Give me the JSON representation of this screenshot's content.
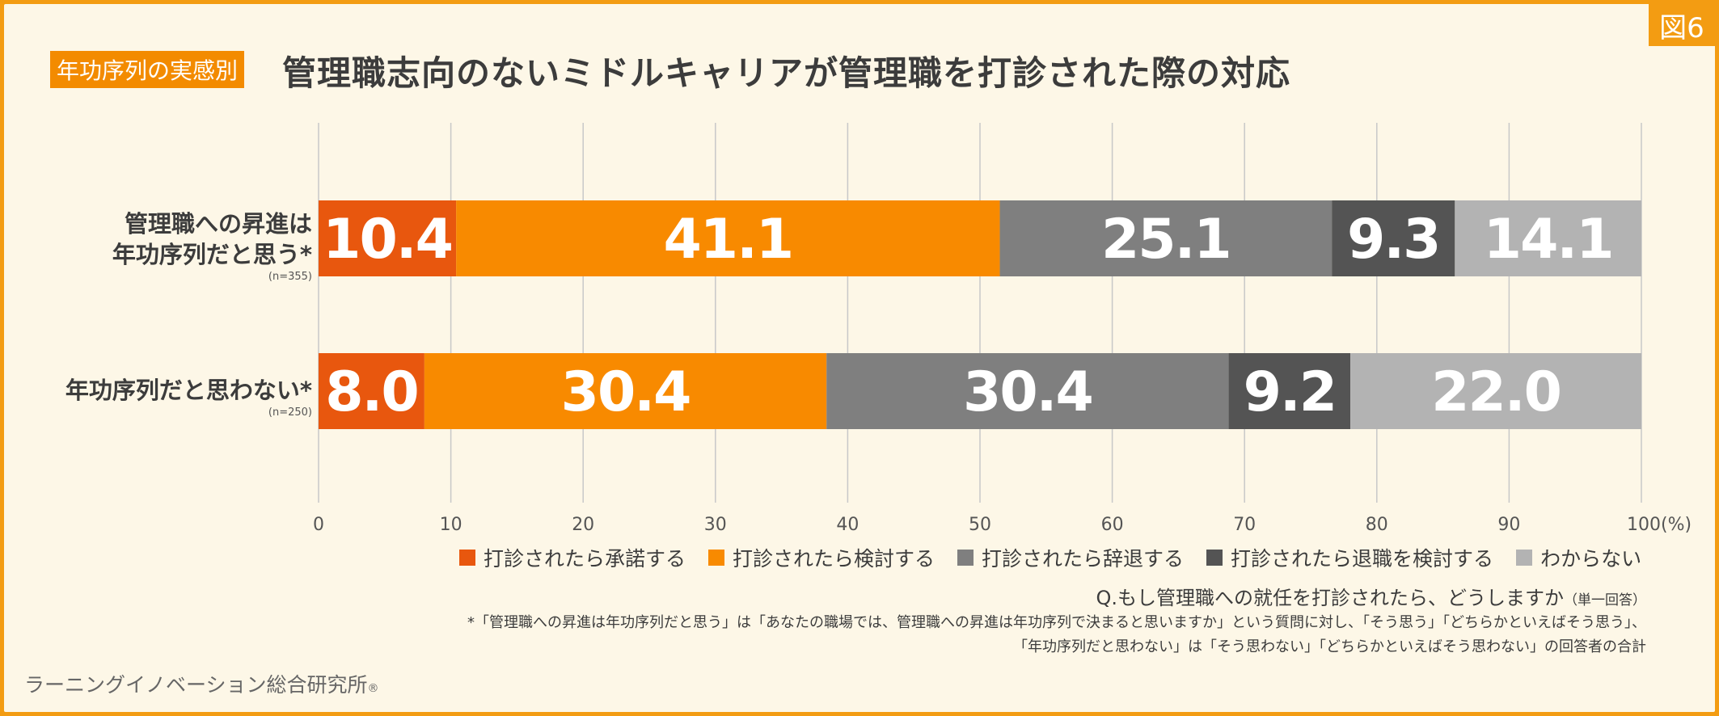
{
  "badge": "図6",
  "tag": "年功序列の実感別",
  "title": "管理職志向のないミドルキャリアが管理職を打診された際の対応",
  "colors": [
    "#e8570e",
    "#f88a00",
    "#7f7f7f",
    "#545454",
    "#b3b3b3"
  ],
  "chart_data": {
    "type": "bar",
    "orientation": "horizontal",
    "stacked": true,
    "categories": [
      "管理職への昇進は年功序列だと思う*",
      "年功序列だと思わない*"
    ],
    "category_lines": [
      [
        "管理職への昇進は",
        "年功序列だと思う*"
      ],
      [
        "年功序列だと思わない*"
      ]
    ],
    "sample_sizes": [
      "(n=355)",
      "(n=250)"
    ],
    "series": [
      {
        "name": "打診されたら承諾する",
        "values": [
          10.4,
          8.0
        ]
      },
      {
        "name": "打診されたら検討する",
        "values": [
          41.1,
          30.4
        ]
      },
      {
        "name": "打診されたら辞退する",
        "values": [
          25.1,
          30.4
        ]
      },
      {
        "name": "打診されたら退職を検討する",
        "values": [
          9.3,
          9.2
        ]
      },
      {
        "name": "わからない",
        "values": [
          14.1,
          22.0
        ]
      }
    ],
    "xlim": [
      0,
      100
    ],
    "xticks": [
      "0",
      "10",
      "20",
      "30",
      "40",
      "50",
      "60",
      "70",
      "80",
      "90",
      "100(%)"
    ],
    "grid": true,
    "legend": "bottom"
  },
  "question": "Q.もし管理職への就任を打診されたら、どうしますか",
  "question_note": "（単一回答）",
  "footnote_lines": [
    "*「管理職への昇進は年功序列だと思う」は「あなたの職場では、管理職への昇進は年功序列で決まると思いますか」という質問に対し、「そう思う」「どちらかといえばそう思う」、",
    "「年功序列だと思わない」は「そう思わない」「どちらかといえばそう思わない」の回答者の合計"
  ],
  "footer": "ラーニングイノベーション総合研究所",
  "footer_mark": "®"
}
